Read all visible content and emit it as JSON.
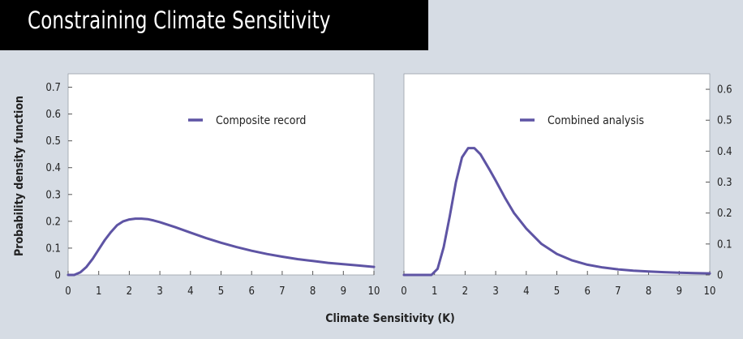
{
  "title": "Constraining Climate Sensitivity",
  "colors": {
    "curve": "#5e54a4",
    "background": "#d6dce4",
    "panel": "#ffffff",
    "titlebar": "#000000"
  },
  "xlabel": "Climate Sensitivity (K)",
  "ylabel": "Probability density function",
  "chart_data": [
    {
      "type": "line",
      "legend": "Composite record",
      "legend_position": "top-right",
      "y_axis_side": "left",
      "xlim": [
        0,
        10
      ],
      "ylim": [
        0,
        0.75
      ],
      "x_ticks": [
        "0",
        "1",
        "2",
        "3",
        "4",
        "5",
        "6",
        "7",
        "8",
        "9",
        "10"
      ],
      "y_ticks": [
        "0",
        "0.1",
        "0.2",
        "0.3",
        "0.4",
        "0.5",
        "0.6",
        "0.7"
      ],
      "series": [
        {
          "name": "Composite record",
          "x": [
            0,
            0.2,
            0.4,
            0.6,
            0.8,
            1.0,
            1.2,
            1.4,
            1.6,
            1.8,
            2.0,
            2.2,
            2.4,
            2.6,
            2.8,
            3.0,
            3.5,
            4.0,
            4.5,
            5.0,
            5.5,
            6.0,
            6.5,
            7.0,
            7.5,
            8.0,
            8.5,
            9.0,
            9.5,
            10.0
          ],
          "y": [
            0,
            0.0,
            0.01,
            0.03,
            0.06,
            0.095,
            0.13,
            0.16,
            0.185,
            0.2,
            0.207,
            0.21,
            0.21,
            0.208,
            0.203,
            0.197,
            0.178,
            0.158,
            0.138,
            0.12,
            0.104,
            0.09,
            0.078,
            0.068,
            0.059,
            0.052,
            0.045,
            0.04,
            0.035,
            0.03
          ]
        }
      ]
    },
    {
      "type": "line",
      "legend": "Combined analysis",
      "legend_position": "top-right",
      "y_axis_side": "right",
      "xlim": [
        0,
        10
      ],
      "ylim": [
        0,
        0.65
      ],
      "x_ticks": [
        "0",
        "1",
        "2",
        "3",
        "4",
        "5",
        "6",
        "7",
        "8",
        "9",
        "10"
      ],
      "y_ticks": [
        "0",
        "0.1",
        "0.2",
        "0.3",
        "0.4",
        "0.5",
        "0.6"
      ],
      "series": [
        {
          "name": "Combined analysis",
          "x": [
            0,
            0.5,
            0.9,
            1.1,
            1.3,
            1.5,
            1.7,
            1.9,
            2.1,
            2.3,
            2.5,
            2.8,
            3.0,
            3.3,
            3.6,
            4.0,
            4.5,
            5.0,
            5.5,
            6.0,
            6.5,
            7.0,
            7.5,
            8.0,
            8.5,
            9.0,
            9.5,
            10.0
          ],
          "y": [
            0,
            0,
            0,
            0.02,
            0.09,
            0.19,
            0.3,
            0.38,
            0.41,
            0.41,
            0.39,
            0.34,
            0.305,
            0.25,
            0.2,
            0.15,
            0.1,
            0.068,
            0.047,
            0.033,
            0.024,
            0.018,
            0.014,
            0.011,
            0.009,
            0.007,
            0.006,
            0.005
          ]
        }
      ]
    }
  ]
}
